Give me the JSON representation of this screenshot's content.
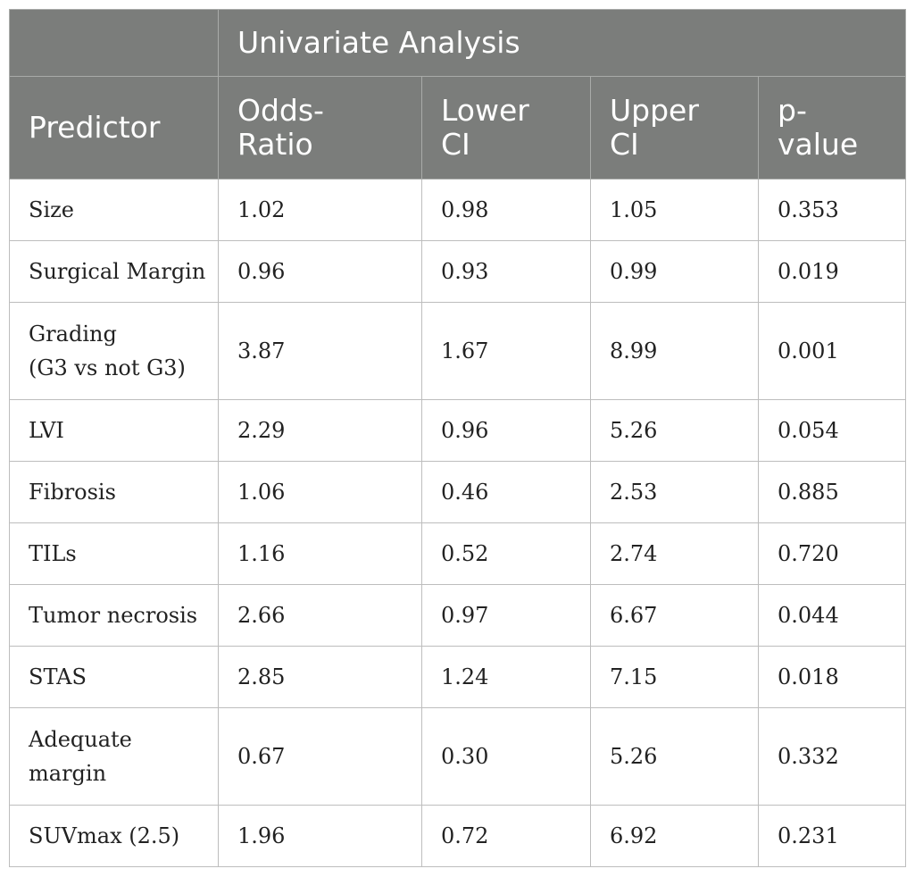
{
  "table": {
    "group_header": "Univariate Analysis",
    "columns": {
      "predictor": "Predictor",
      "odds_ratio": [
        "Odds-",
        "Ratio"
      ],
      "lower_ci": [
        "Lower",
        "CI"
      ],
      "upper_ci": [
        "Upper",
        "CI"
      ],
      "p_value": [
        "p-",
        "value"
      ]
    },
    "rows": [
      {
        "predictor": [
          "Size"
        ],
        "odds_ratio": "1.02",
        "lower_ci": "0.98",
        "upper_ci": "1.05",
        "p_value": "0.353"
      },
      {
        "predictor": [
          "Surgical Margin"
        ],
        "odds_ratio": "0.96",
        "lower_ci": "0.93",
        "upper_ci": "0.99",
        "p_value": "0.019"
      },
      {
        "predictor": [
          "Grading",
          "(G3 vs not G3)"
        ],
        "odds_ratio": "3.87",
        "lower_ci": "1.67",
        "upper_ci": "8.99",
        "p_value": "0.001"
      },
      {
        "predictor": [
          "LVI"
        ],
        "odds_ratio": "2.29",
        "lower_ci": "0.96",
        "upper_ci": "5.26",
        "p_value": "0.054"
      },
      {
        "predictor": [
          "Fibrosis"
        ],
        "odds_ratio": "1.06",
        "lower_ci": "0.46",
        "upper_ci": "2.53",
        "p_value": "0.885"
      },
      {
        "predictor": [
          "TILs"
        ],
        "odds_ratio": "1.16",
        "lower_ci": "0.52",
        "upper_ci": "2.74",
        "p_value": "0.720"
      },
      {
        "predictor": [
          "Tumor necrosis"
        ],
        "odds_ratio": "2.66",
        "lower_ci": "0.97",
        "upper_ci": "6.67",
        "p_value": "0.044"
      },
      {
        "predictor": [
          "STAS"
        ],
        "odds_ratio": "2.85",
        "lower_ci": "1.24",
        "upper_ci": "7.15",
        "p_value": "0.018"
      },
      {
        "predictor": [
          "Adequate",
          "margin"
        ],
        "odds_ratio": "0.67",
        "lower_ci": "0.30",
        "upper_ci": "5.26",
        "p_value": "0.332"
      },
      {
        "predictor": [
          "SUVmax (2.5)"
        ],
        "odds_ratio": "1.96",
        "lower_ci": "0.72",
        "upper_ci": "6.92",
        "p_value": "0.231"
      }
    ]
  }
}
